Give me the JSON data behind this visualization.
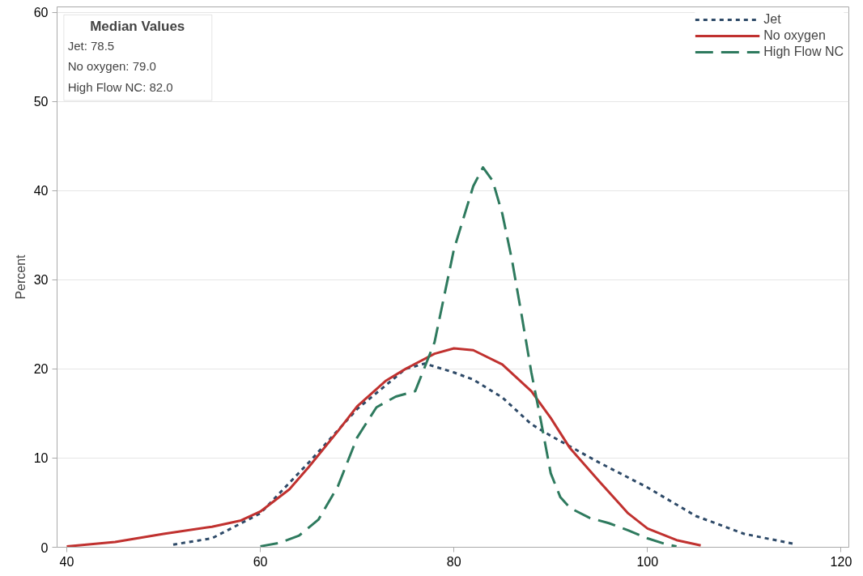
{
  "chart_data": {
    "type": "line",
    "ylabel": "Percent",
    "xlim": [
      39,
      120.8
    ],
    "ylim": [
      0,
      60.6
    ],
    "xticks": [
      40,
      60,
      80,
      100,
      120
    ],
    "yticks": [
      0,
      10,
      20,
      30,
      40,
      50,
      60
    ],
    "grid": "y",
    "legend": "top right",
    "annotations": [
      "Median Values",
      "Jet: 78.5",
      "No oxygen: 79.0",
      "High Flow NC: 82.0"
    ],
    "series": [
      {
        "name": "Jet",
        "color": "#2e4a68",
        "line_style": "dotted",
        "x": [
          51,
          55,
          60,
          65,
          70,
          75,
          77,
          80,
          82,
          85,
          88,
          90,
          95,
          100,
          105,
          110,
          115
        ],
        "values": [
          0.3,
          1.0,
          3.8,
          9.5,
          15.5,
          20,
          20.6,
          19.6,
          18.8,
          16.8,
          13.8,
          12.5,
          9.5,
          6.7,
          3.5,
          1.5,
          0.4
        ]
      },
      {
        "name": "No oxygen",
        "color": "#c0312f",
        "line_style": "solid",
        "x": [
          40,
          45,
          50,
          55,
          58,
          60,
          63,
          65,
          68,
          70,
          73,
          75,
          78,
          80,
          82,
          85,
          88,
          90,
          92,
          95,
          98,
          100,
          103,
          105.5
        ],
        "values": [
          0.1,
          0.6,
          1.5,
          2.3,
          3,
          4,
          6.5,
          9,
          13,
          15.8,
          18.7,
          20,
          21.7,
          22.3,
          22.1,
          20.5,
          17.5,
          14.5,
          11.1,
          7.4,
          3.8,
          2.1,
          0.8,
          0.2
        ]
      },
      {
        "name": "High Flow NC",
        "color": "#2e7a5e",
        "line_style": "dashed",
        "x": [
          60,
          62,
          64,
          66,
          68,
          70,
          72,
          74,
          76,
          78,
          80,
          82,
          83,
          84,
          85,
          86,
          87,
          88,
          89,
          90,
          91,
          92,
          94,
          96,
          98,
          100,
          102,
          103
        ],
        "values": [
          0.1,
          0.5,
          1.3,
          3.1,
          6.8,
          12.3,
          15.7,
          16.9,
          17.5,
          23,
          33.4,
          40.5,
          42.6,
          41.1,
          37.4,
          32.2,
          26,
          19.6,
          14.1,
          8.3,
          5.6,
          4.4,
          3.3,
          2.7,
          1.9,
          1.0,
          0.3,
          0.1
        ]
      }
    ]
  }
}
